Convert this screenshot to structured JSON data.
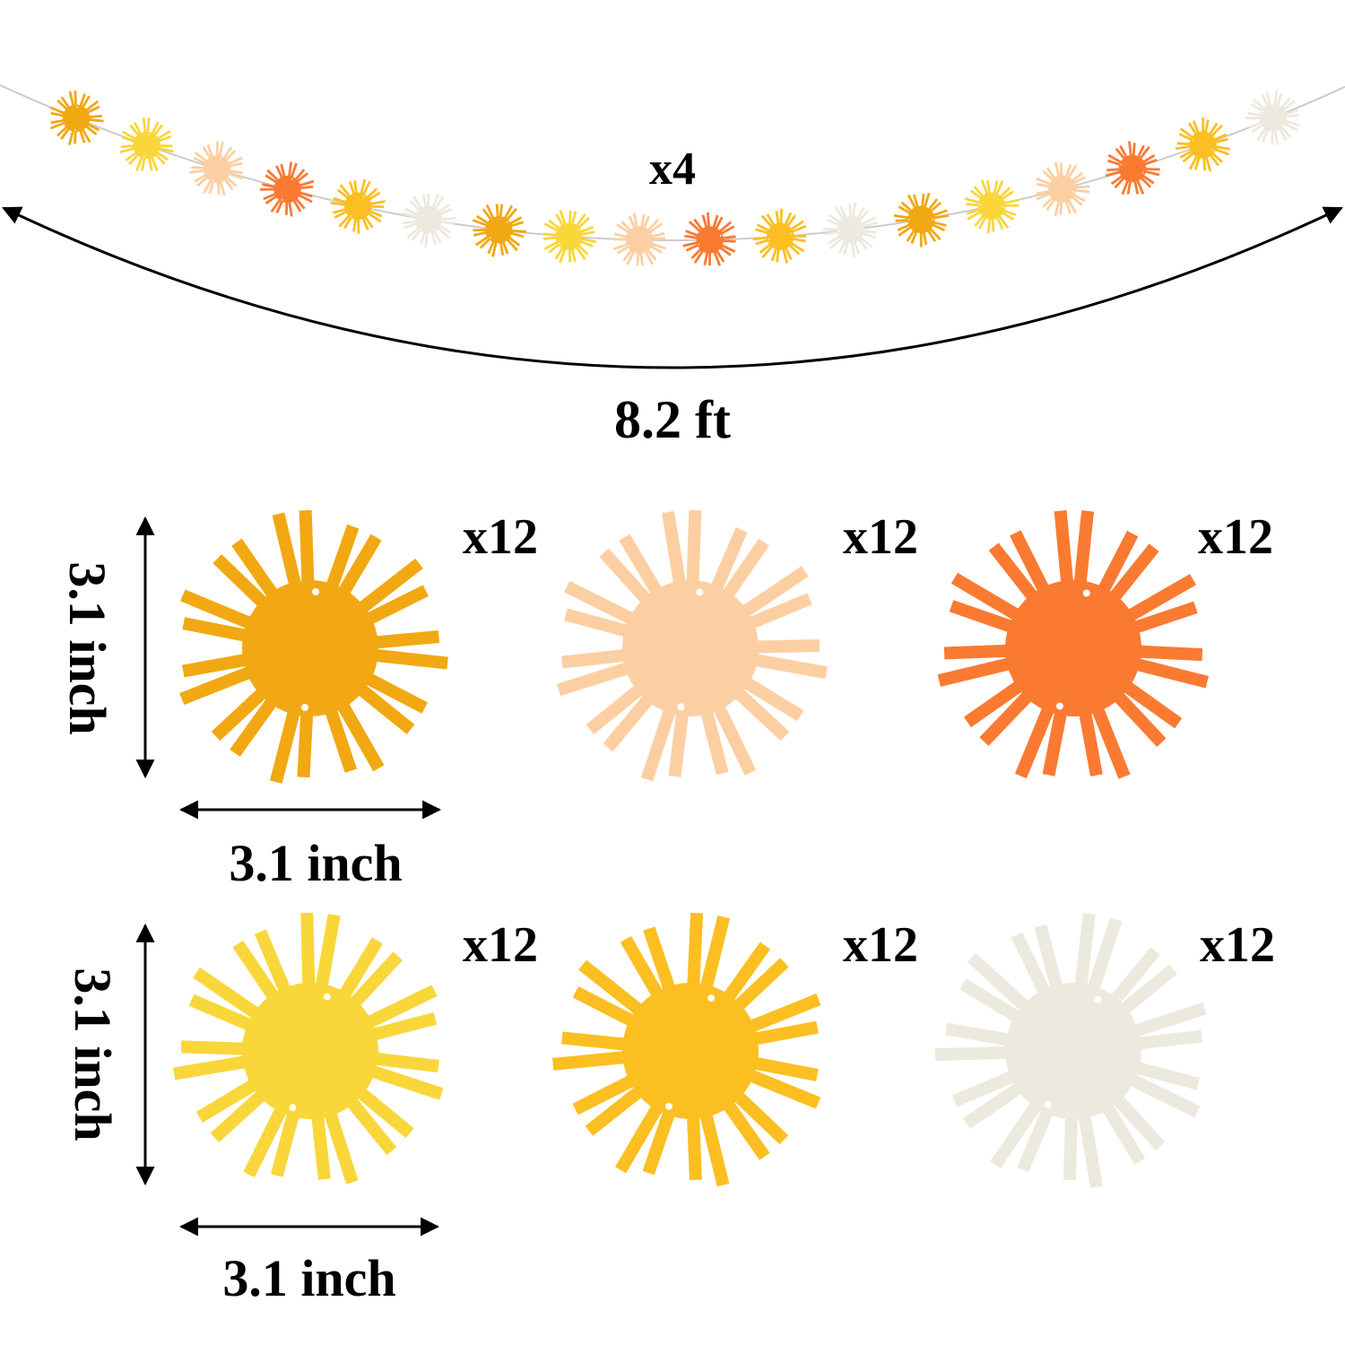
{
  "garland": {
    "count_label": "x4",
    "length_label": "8.2 ft"
  },
  "pieces": [
    {
      "count_label": "x12"
    },
    {
      "count_label": "x12"
    },
    {
      "count_label": "x12"
    },
    {
      "count_label": "x12"
    },
    {
      "count_label": "x12"
    },
    {
      "count_label": "x12"
    }
  ],
  "dimensions": [
    {
      "height_label": "3.1 inch",
      "width_label": "3.1 inch"
    },
    {
      "height_label": "3.1 inch",
      "width_label": "3.1 inch"
    }
  ]
}
